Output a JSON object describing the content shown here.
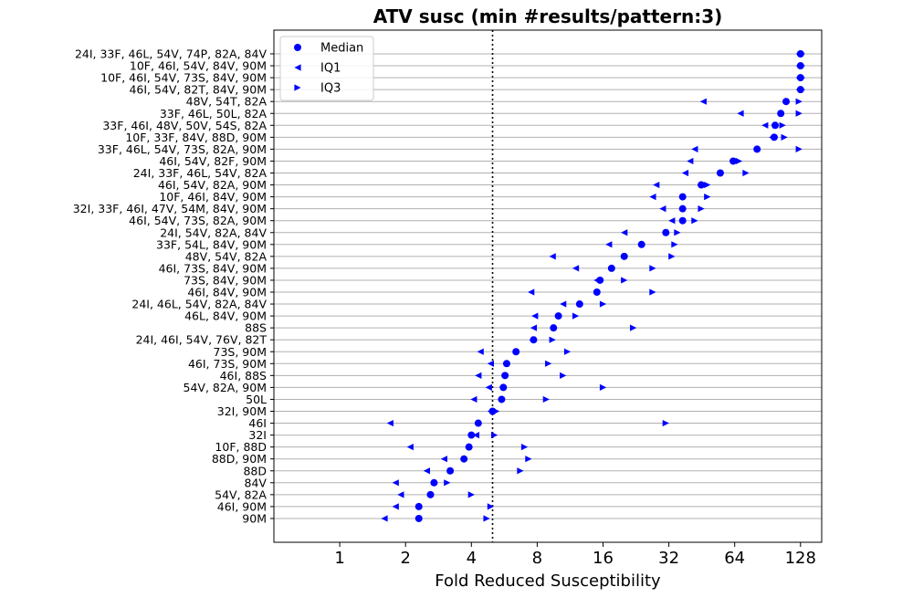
{
  "chart_data": {
    "type": "scatter",
    "title": "ATV susc (min #results/pattern:3)",
    "xlabel": "Fold Reduced Susceptibility",
    "ylabel": "",
    "x_scale": "log2",
    "xlim": [
      0.5,
      160
    ],
    "x_ticks": [
      1,
      2,
      4,
      8,
      16,
      32,
      64,
      128
    ],
    "x_tick_labels": [
      "1",
      "2",
      "4",
      "8",
      "16",
      "32",
      "64",
      "128"
    ],
    "reference_line_x": 5.0,
    "grid": "horizontal",
    "legend_position": "top-left",
    "series_names": [
      "Median",
      "IQ1",
      "IQ3"
    ],
    "colors": {
      "points": "#0000ff",
      "grid": "#b0b0b0",
      "reference_line": "#000000"
    },
    "categories": [
      "24I, 33F, 46L, 54V, 74P, 82A, 84V",
      "10F, 46I, 54V, 84V, 90M",
      "10F, 46I, 54V, 73S, 84V, 90M",
      "46I, 54V, 82T, 84V, 90M",
      "48V, 54T, 82A",
      "33F, 46L, 50L, 82A",
      "33F, 46I, 48V, 50V, 54S, 82A",
      "10F, 33F, 84V, 88D, 90M",
      "33F, 46L, 54V, 73S, 82A, 90M",
      "46I, 54V, 82F, 90M",
      "24I, 33F, 46L, 54V, 82A",
      "46I, 54V, 82A, 90M",
      "10F, 46I, 84V, 90M",
      "32I, 33F, 46I, 47V, 54M, 84V, 90M",
      "46I, 54V, 73S, 82A, 90M",
      "24I, 54V, 82A, 84V",
      "33F, 54L, 84V, 90M",
      "48V, 54V, 82A",
      "46I, 73S, 84V, 90M",
      "73S, 84V, 90M",
      "46I, 84V, 90M",
      "24I, 46L, 54V, 82A, 84V",
      "46L, 84V, 90M",
      "88S",
      "24I, 46I, 54V, 76V, 82T",
      "73S, 90M",
      "46I, 73S, 90M",
      "46I, 88S",
      "54V, 82A, 90M",
      "50L",
      "32I, 90M",
      "46I",
      "32I",
      "10F, 88D",
      "88D, 90M",
      "88D",
      "84V",
      "54V, 82A",
      "46I, 90M",
      "90M"
    ],
    "series": [
      {
        "name": "Median",
        "marker": "circle",
        "values": [
          128,
          128,
          128,
          128,
          110,
          104,
          98,
          97,
          81,
          63,
          55,
          45,
          37,
          37,
          37,
          31,
          24,
          20,
          17.5,
          15.5,
          15,
          12.5,
          10,
          9.5,
          7.7,
          6.4,
          5.8,
          5.7,
          5.6,
          5.5,
          5.0,
          4.3,
          4.0,
          3.9,
          3.7,
          3.2,
          2.7,
          2.6,
          2.3,
          2.3
        ]
      },
      {
        "name": "IQ1",
        "marker": "triangle-left",
        "values": [
          126,
          126,
          126,
          126,
          46,
          68,
          88,
          95,
          42,
          40,
          38,
          28,
          27,
          30,
          33,
          20,
          17,
          9.4,
          12,
          15,
          7.5,
          10.5,
          7.8,
          7.7,
          7.6,
          4.4,
          4.9,
          4.3,
          4.8,
          4.1,
          4.9,
          1.7,
          4.2,
          2.1,
          3.0,
          2.5,
          1.8,
          1.9,
          1.8,
          1.6
        ]
      },
      {
        "name": "IQ3",
        "marker": "triangle-right",
        "values": [
          130,
          130,
          130,
          130,
          126,
          126,
          106,
          108,
          126,
          67,
          72,
          48,
          48,
          45,
          42,
          35,
          34,
          33,
          27,
          20,
          27,
          16,
          12,
          22,
          9.4,
          11,
          9,
          10.5,
          16,
          8.8,
          5.2,
          31,
          5.1,
          7.0,
          7.3,
          6.7,
          3.1,
          4.0,
          4.9,
          4.7
        ]
      }
    ]
  }
}
